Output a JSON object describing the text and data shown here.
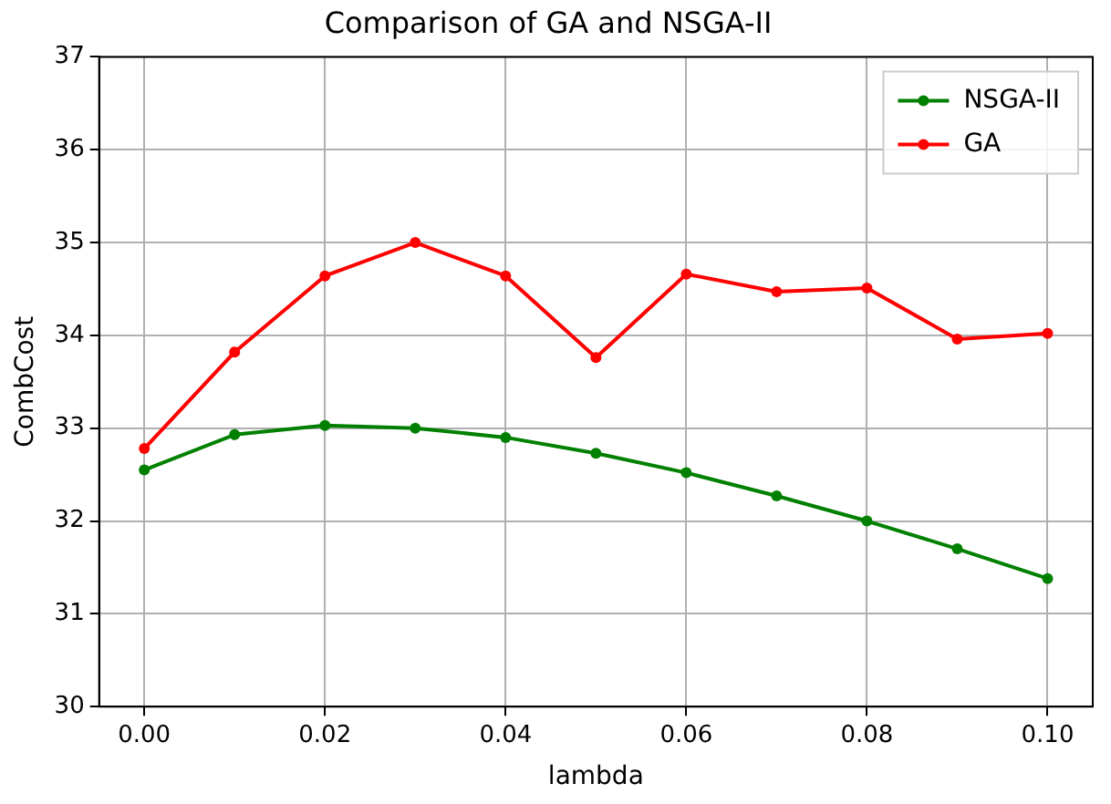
{
  "chart_data": {
    "type": "line",
    "title": "Comparison of GA and NSGA-II",
    "xlabel": "lambda",
    "ylabel": "CombCost",
    "x": [
      0.0,
      0.01,
      0.02,
      0.03,
      0.04,
      0.05,
      0.06,
      0.07,
      0.08,
      0.09,
      0.1
    ],
    "series": [
      {
        "name": "NSGA-II",
        "color": "#008000",
        "values": [
          32.55,
          32.93,
          33.03,
          33.0,
          32.9,
          32.73,
          32.52,
          32.27,
          32.0,
          31.7,
          31.38
        ]
      },
      {
        "name": "GA",
        "color": "#ff0000",
        "values": [
          32.78,
          33.82,
          34.64,
          35.0,
          34.64,
          33.76,
          34.66,
          34.47,
          34.51,
          33.96,
          34.02
        ]
      }
    ],
    "xlim": [
      -0.005,
      0.105
    ],
    "xticks": [
      {
        "value": 0,
        "label": "0.00"
      },
      {
        "value": 0.02,
        "label": "0.02"
      },
      {
        "value": 0.04,
        "label": "0.04"
      },
      {
        "value": 0.06,
        "label": "0.06"
      },
      {
        "value": 0.08,
        "label": "0.08"
      },
      {
        "value": 0.1,
        "label": "0.10"
      }
    ],
    "ylim": [
      30,
      37
    ],
    "yticks": [
      30,
      31,
      32,
      33,
      34,
      35,
      36,
      37
    ],
    "grid": true,
    "legend": "top right",
    "marker": "circle",
    "line_style": "solid"
  }
}
